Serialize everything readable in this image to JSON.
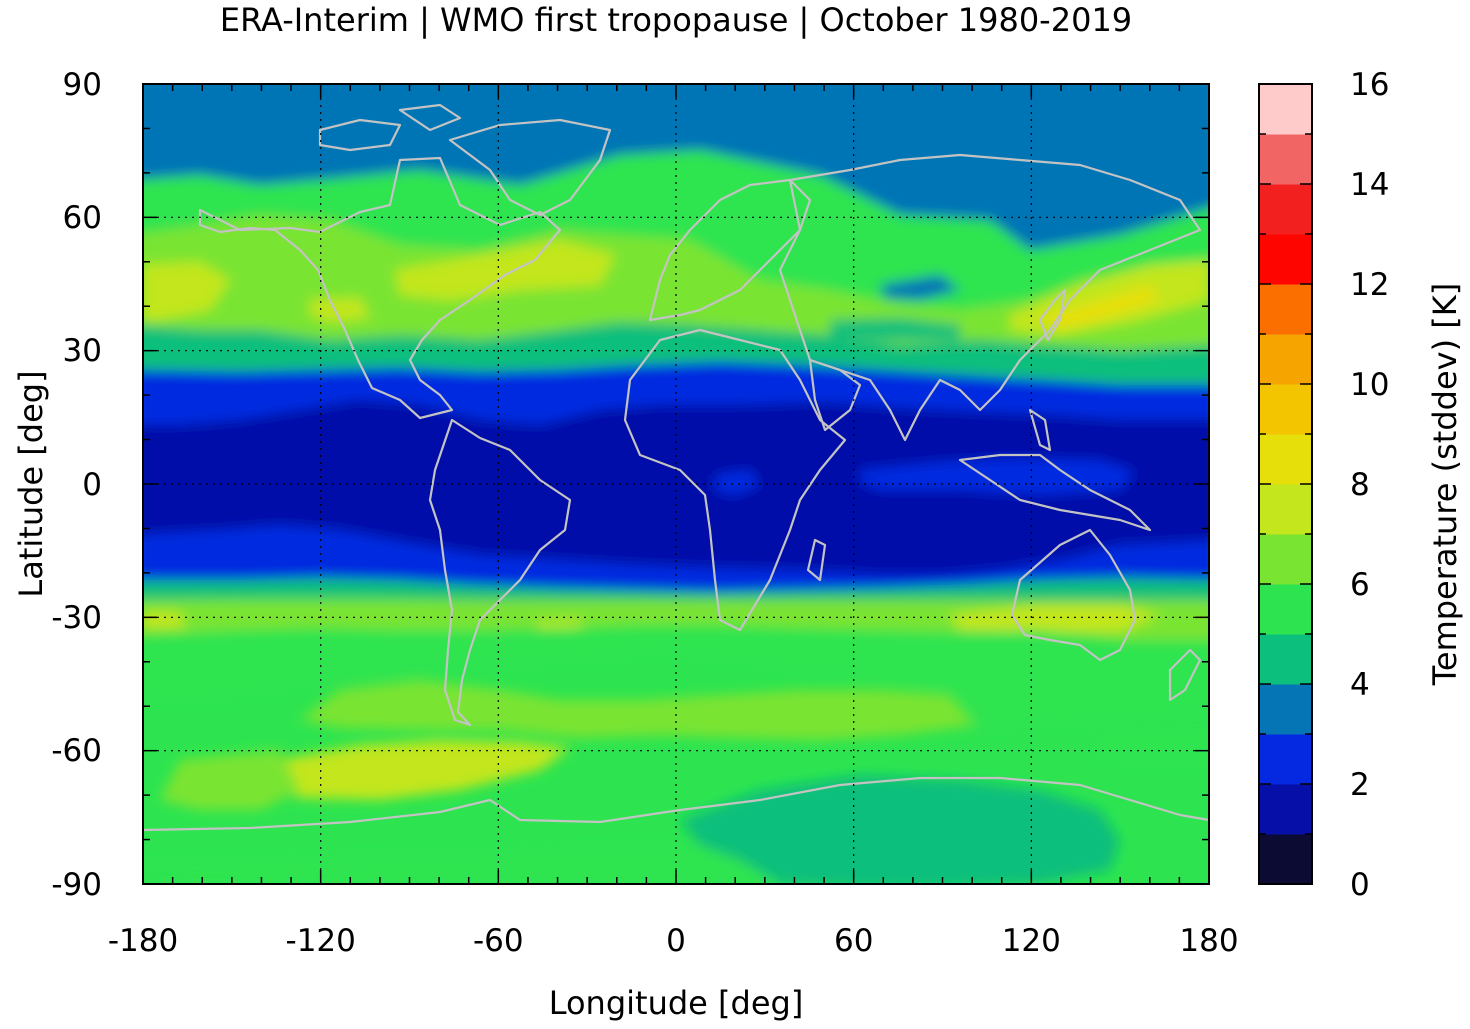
{
  "chart_data": {
    "type": "heatmap",
    "title": "ERA-Interim | WMO first tropopause | October 1980-2019",
    "xlabel": "Longitude [deg]",
    "ylabel": "Latitude [deg]",
    "xlim": [
      -180,
      180
    ],
    "ylim": [
      -90,
      90
    ],
    "xticks": [
      -180,
      -120,
      -60,
      0,
      60,
      120,
      180
    ],
    "xtick_labels": [
      "-180",
      "-120",
      "-60",
      "0",
      "60",
      "120",
      "180"
    ],
    "yticks": [
      90,
      60,
      30,
      0,
      -30,
      -60,
      -90
    ],
    "ytick_labels": [
      "90",
      "60",
      "30",
      "0",
      "-30",
      "-60",
      "-90"
    ],
    "grid": "dotted",
    "colorbar": {
      "label": "Temperature (stddev) [K]",
      "range": [
        0,
        16
      ],
      "ticks": [
        0,
        2,
        4,
        6,
        8,
        10,
        12,
        14,
        16
      ],
      "tick_labels": [
        "0",
        "2",
        "4",
        "6",
        "8",
        "10",
        "12",
        "14",
        "16"
      ],
      "colors": [
        "#0b0b33",
        "#0610a8",
        "#0429e0",
        "#0575b6",
        "#0dbf7c",
        "#2de450",
        "#7ae432",
        "#c3e61c",
        "#e6df0a",
        "#f3c400",
        "#f6a500",
        "#fb6f00",
        "#ff0500",
        "#f32020",
        "#f26565",
        "#ffcaca"
      ],
      "position": "right"
    },
    "zonal_pattern": [
      {
        "lat": [
          -90,
          -80
        ],
        "value": 5.5
      },
      {
        "lat": [
          -80,
          -70
        ],
        "value": 5.8
      },
      {
        "lat": [
          -70,
          -55
        ],
        "value": 6.8
      },
      {
        "lat": [
          -55,
          -35
        ],
        "value": 6.6
      },
      {
        "lat": [
          -35,
          -28
        ],
        "value": 7.0
      },
      {
        "lat": [
          -28,
          -20
        ],
        "value": 3.2
      },
      {
        "lat": [
          -20,
          18
        ],
        "value": 1.4
      },
      {
        "lat": [
          18,
          25
        ],
        "value": 2.5
      },
      {
        "lat": [
          25,
          30
        ],
        "value": 3.5
      },
      {
        "lat": [
          30,
          38
        ],
        "value": 5.7
      },
      {
        "lat": [
          38,
          55
        ],
        "value": 7.5
      },
      {
        "lat": [
          55,
          65
        ],
        "value": 5.0
      },
      {
        "lat": [
          65,
          90
        ],
        "value": 3.6
      }
    ],
    "coastlines": true
  }
}
